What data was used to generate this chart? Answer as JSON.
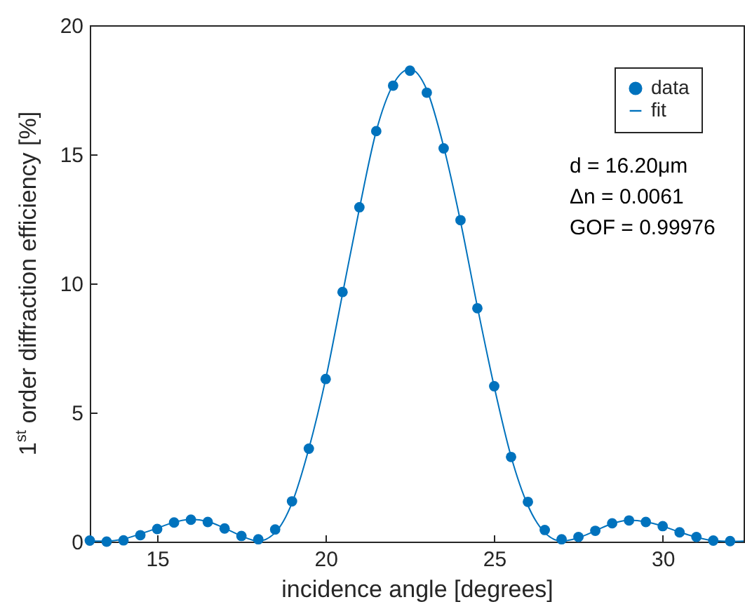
{
  "chart_data": {
    "type": "scatter",
    "xlabel": "incidence angle [degrees]",
    "ylabel": "1$^{st}$ order diffraction efficiency [%]",
    "xlim": [
      13,
      32.4
    ],
    "ylim": [
      0,
      20
    ],
    "xticks": [
      15,
      20,
      25,
      30
    ],
    "yticks": [
      0,
      5,
      10,
      15,
      20
    ],
    "grid": false,
    "legend": "top right",
    "marker": "circle",
    "annotations": [
      "d = 16.20μm",
      "Δn = 0.0061",
      "GOF = 0.99976"
    ],
    "series": [
      {
        "name": "data",
        "color": "#0072bd",
        "x": [
          13,
          13.5,
          14,
          14.5,
          15,
          15.5,
          16,
          16.5,
          17,
          17.5,
          18,
          18.5,
          19,
          19.5,
          20,
          20.5,
          21,
          21.5,
          22,
          22.5,
          23,
          23.5,
          24,
          24.5,
          25,
          25.5,
          26,
          26.5,
          27,
          27.5,
          28,
          28.5,
          29,
          29.5,
          30,
          30.5,
          31,
          31.5,
          32
        ],
        "values": [
          0.04,
          0,
          0.05,
          0.25,
          0.49,
          0.74,
          0.85,
          0.76,
          0.51,
          0.22,
          0.09,
          0.47,
          1.56,
          3.6,
          6.3,
          9.67,
          12.95,
          15.9,
          17.66,
          18.24,
          17.39,
          15.23,
          12.45,
          9.04,
          6.02,
          3.28,
          1.54,
          0.45,
          0.09,
          0.18,
          0.42,
          0.71,
          0.82,
          0.76,
          0.6,
          0.36,
          0.18,
          0.04,
          0.02
        ]
      },
      {
        "name": "fit",
        "color": "#0072bd",
        "type": "line",
        "line_style": "solid",
        "marker": "none",
        "x": [
          13,
          13.5,
          14,
          14.5,
          15,
          15.5,
          16,
          16.5,
          17,
          17.5,
          18,
          18.5,
          19,
          19.5,
          20,
          20.5,
          21,
          21.5,
          22,
          22.5,
          23,
          23.5,
          24,
          24.5,
          25,
          25.5,
          26,
          26.5,
          27,
          27.5,
          28,
          28.5,
          29,
          29.5,
          30,
          30.5,
          31,
          31.5,
          32,
          32.4
        ],
        "values": [
          0.03,
          0.02,
          0.1,
          0.3,
          0.52,
          0.75,
          0.86,
          0.78,
          0.52,
          0.22,
          0.02,
          0.35,
          1.5,
          3.6,
          6.3,
          9.6,
          12.9,
          15.9,
          17.7,
          18.3,
          17.5,
          15.3,
          12.4,
          9.1,
          6.0,
          3.3,
          1.4,
          0.35,
          0.02,
          0.15,
          0.42,
          0.7,
          0.83,
          0.77,
          0.6,
          0.37,
          0.17,
          0.04,
          0.01,
          0.02
        ]
      }
    ]
  }
}
